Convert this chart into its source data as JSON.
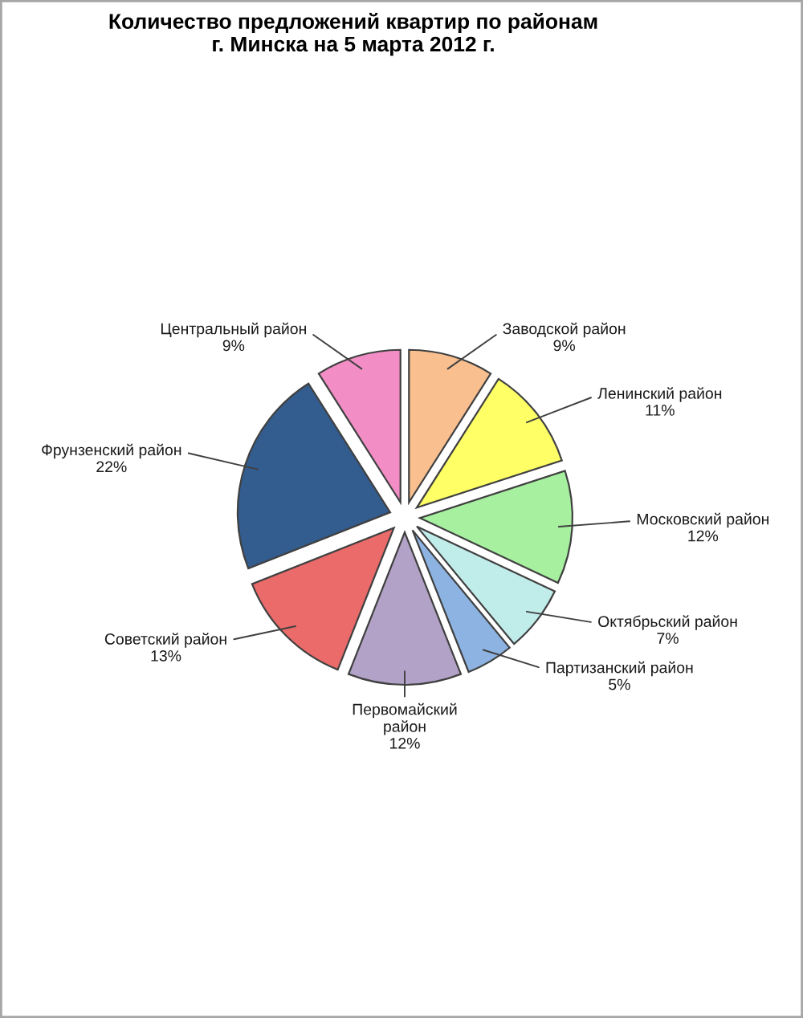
{
  "chart_data": {
    "type": "pie",
    "title": "Количество предложений квартир по районам\nг. Минска на 5 марта 2012 г.",
    "categories": [
      "Заводской район",
      "Ленинский район",
      "Московский район",
      "Октябрьский район",
      "Партизанский район",
      "Первомайский\nрайон",
      "Советский район",
      "Фрунзенский район",
      "Центральный район"
    ],
    "values": [
      9,
      11,
      12,
      7,
      5,
      12,
      13,
      22,
      9
    ],
    "value_labels": [
      "9%",
      "11%",
      "12%",
      "7%",
      "5%",
      "12%",
      "13%",
      "22%",
      "9%"
    ],
    "colors": [
      "#f9bf8f",
      "#ffff66",
      "#a6f0a0",
      "#c0ecea",
      "#8db3e2",
      "#b3a2c7",
      "#eb6b6b",
      "#335c8f",
      "#f28dc6"
    ]
  }
}
